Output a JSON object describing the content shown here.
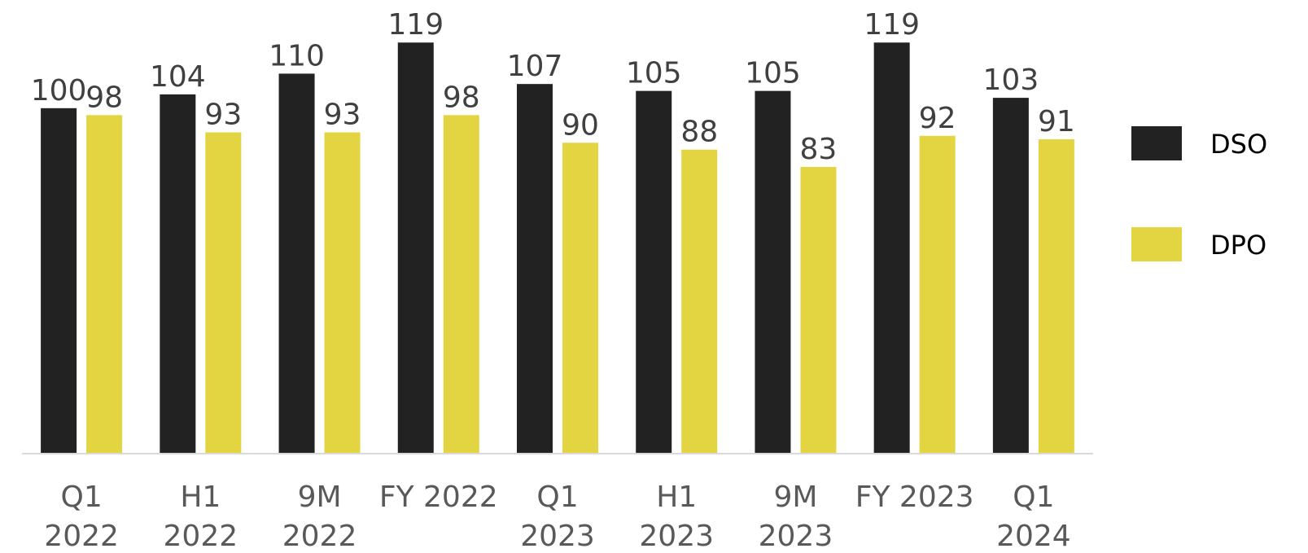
{
  "chart_data": {
    "type": "bar",
    "categories": [
      [
        "Q1",
        "2022"
      ],
      [
        "H1",
        "2022"
      ],
      [
        "9M",
        "2022"
      ],
      [
        "FY 2022"
      ],
      [
        "Q1",
        "2023"
      ],
      [
        "H1",
        "2023"
      ],
      [
        "9M",
        "2023"
      ],
      [
        "FY 2023"
      ],
      [
        "Q1",
        "2024"
      ]
    ],
    "series": [
      {
        "name": "DSO",
        "values": [
          100,
          104,
          110,
          119,
          107,
          105,
          105,
          119,
          103
        ],
        "color": "#222222"
      },
      {
        "name": "DPO",
        "values": [
          98,
          93,
          93,
          98,
          90,
          88,
          83,
          92,
          91
        ],
        "color": "#E2D541"
      }
    ],
    "ylim": [
      0,
      120
    ],
    "grid": false,
    "legend": "right",
    "data_labels": true
  }
}
